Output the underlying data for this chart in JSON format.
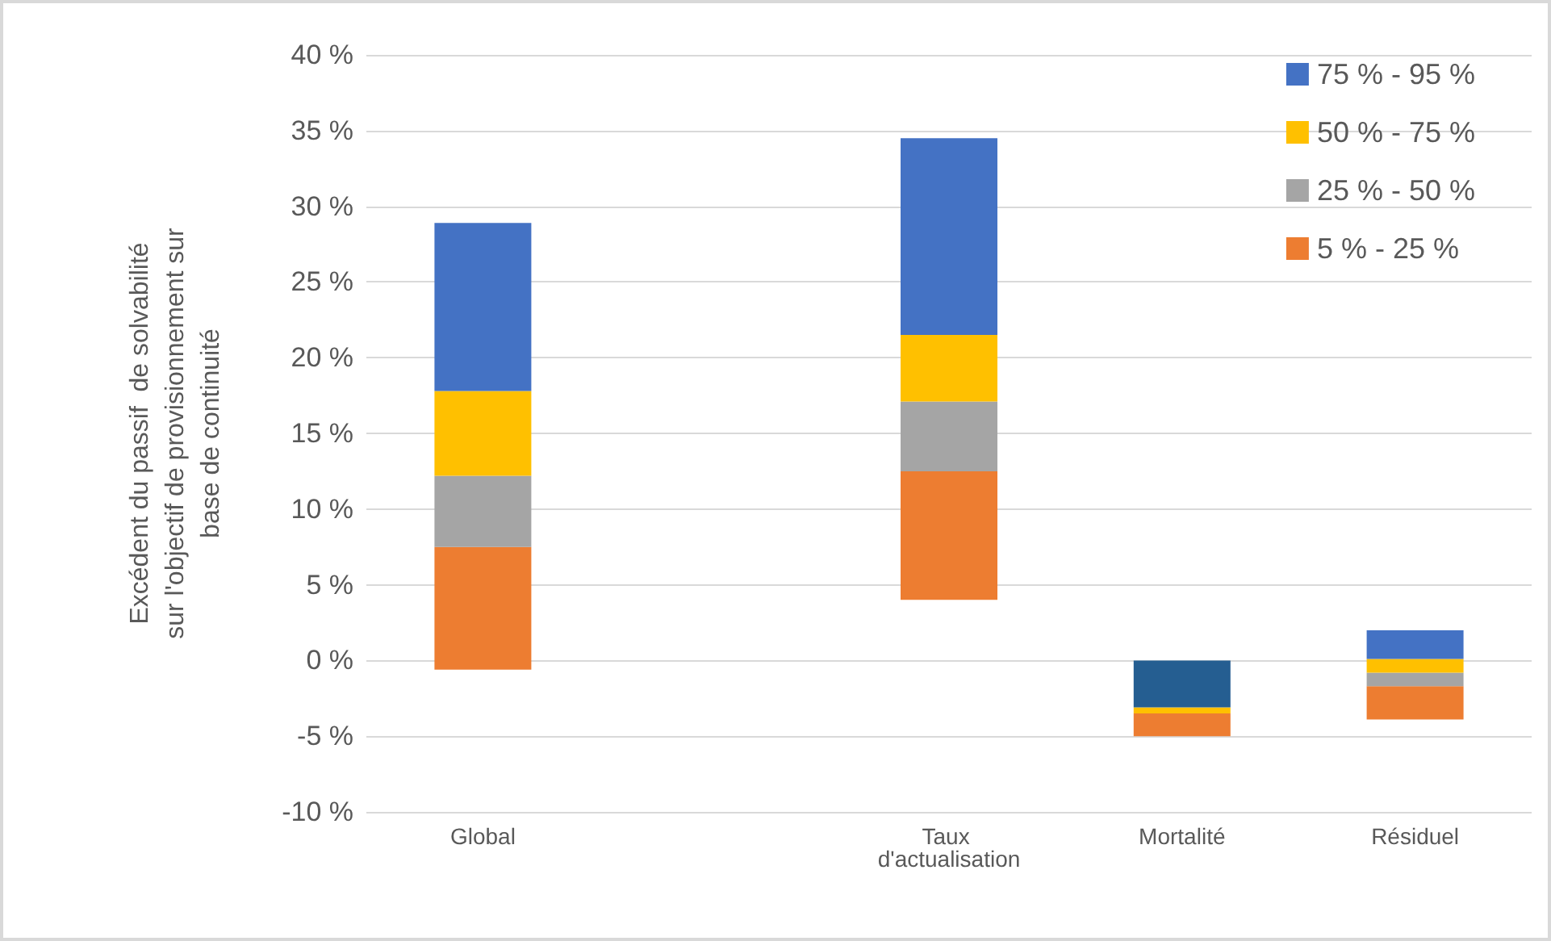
{
  "chart_data": {
    "type": "bar",
    "ylabel": "Excédent du passif  de solvabilité\nsur l'objectif de provisionnement sur\nbase de continuité",
    "categories": [
      "Global",
      null,
      "Taux d'actualisation",
      "Mortalité",
      "Résiduel"
    ],
    "series": [
      {
        "name": "5 % - 25 %",
        "color": "#ed7d31",
        "base": [
          -0.6,
          null,
          4.0,
          -5.0,
          -3.9
        ],
        "values": [
          8.1,
          null,
          8.5,
          1.5,
          2.2
        ]
      },
      {
        "name": "25 % - 50 %",
        "color": "#a5a5a5",
        "base": [
          7.5,
          null,
          12.5,
          null,
          -1.7
        ],
        "values": [
          4.7,
          null,
          4.6,
          null,
          0.9
        ]
      },
      {
        "name": "50 % - 75 %",
        "color": "#ffc000",
        "base": [
          12.2,
          null,
          17.1,
          -3.5,
          -0.8
        ],
        "values": [
          5.6,
          null,
          4.4,
          0.4,
          0.9
        ]
      },
      {
        "name": "75 % - 95 %",
        "color": "#4472c4",
        "colors": [
          "#4472c4",
          null,
          "#4472c4",
          "#255e91",
          "#4472c4"
        ],
        "base": [
          17.8,
          null,
          21.5,
          -3.1,
          0.1
        ],
        "values": [
          11.1,
          null,
          13.0,
          3.1,
          1.9
        ]
      }
    ],
    "ylim": [
      -10,
      40
    ],
    "yticks": [
      {
        "value": -10,
        "label": "-10 %"
      },
      {
        "value": -5,
        "label": "-5 %"
      },
      {
        "value": 0,
        "label": "0 %"
      },
      {
        "value": 5,
        "label": "5 %"
      },
      {
        "value": 10,
        "label": "10 %"
      },
      {
        "value": 15,
        "label": "15 %"
      },
      {
        "value": 20,
        "label": "20 %"
      },
      {
        "value": 25,
        "label": "25 %"
      },
      {
        "value": 30,
        "label": "30 %"
      },
      {
        "value": 35,
        "label": "35 %"
      },
      {
        "value": 40,
        "label": "40 %"
      }
    ],
    "grid": "y",
    "legend": "top right"
  }
}
